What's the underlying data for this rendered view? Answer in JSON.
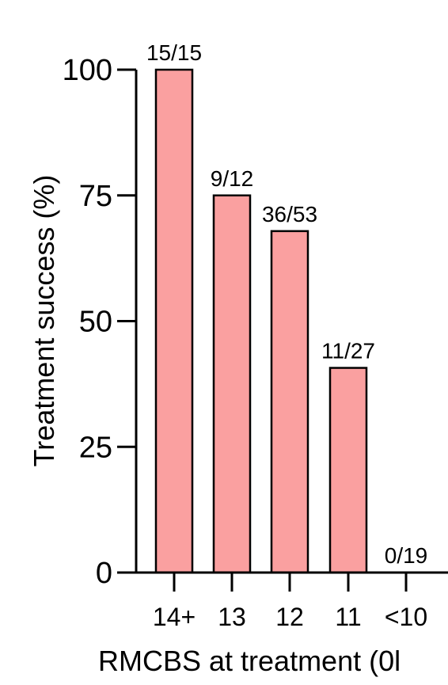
{
  "chart_data": {
    "type": "bar",
    "title": "",
    "xlabel": "RMCBS at treatment (0l",
    "ylabel": "Treatment success (%)",
    "ylim": [
      0,
      100
    ],
    "yticks": [
      "0",
      "25",
      "50",
      "75",
      "100"
    ],
    "categories": [
      "14+",
      "13",
      "12",
      "11",
      "<10"
    ],
    "values": [
      100,
      75,
      67.9,
      40.7,
      0
    ],
    "data_labels": [
      "15/15",
      "9/12",
      "36/53",
      "11/27",
      "0/19"
    ],
    "grid": false,
    "legend": "none",
    "bar_color": "#FAA0A0",
    "edge_color": "#000000"
  }
}
